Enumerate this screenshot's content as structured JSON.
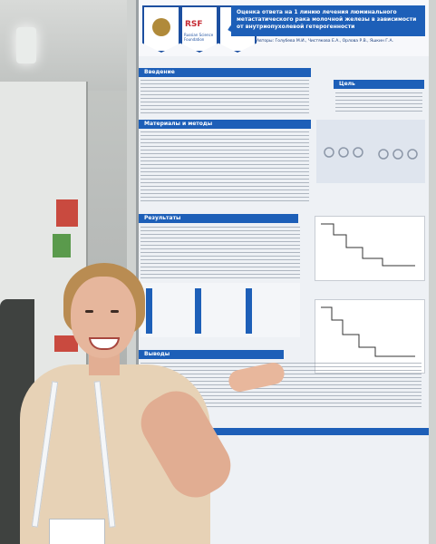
{
  "photo": {
    "description_colors": {
      "poster_blue": "#1d5fb8",
      "rsf_red": "#c52b34",
      "shirt": "#e7d2b6"
    }
  },
  "poster": {
    "logos": {
      "rsf_title": "RSF",
      "rsf_subtitle": "Russian Science Foundation"
    },
    "title": "Оценка ответа на 1 линию лечения люминального метастатического рака молочной железы в зависимости от внутриопухолевой гетерогенности",
    "authors": "Авторы: Голубева М.И., Чистякова Е.А., Орлова Р.В., Яшкин Г.А.",
    "sections": {
      "intro": "Введение",
      "goal": "Цель",
      "methods": "Материалы и методы",
      "results": "Результаты",
      "conclusions": "Выводы"
    }
  }
}
